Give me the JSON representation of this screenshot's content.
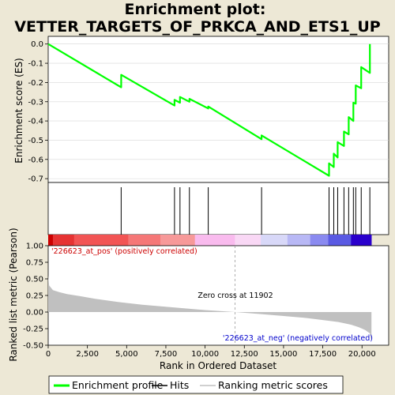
{
  "title_line1": "Enrichment plot:",
  "title_line2": "VETTER_TARGETS_OF_PRKCA_AND_ETS1_UP",
  "chart_data": [
    {
      "type": "line",
      "ylabel": "Enrichment score (ES)",
      "ylim": [
        -0.72,
        0.04
      ],
      "xlim": [
        0,
        21700
      ],
      "yticks": [
        0.0,
        -0.1,
        -0.2,
        -0.3,
        -0.4,
        -0.5,
        -0.6,
        -0.7
      ],
      "ytick_labels": [
        "0.0",
        "-0.1",
        "-0.2",
        "-0.3",
        "-0.4",
        "-0.5",
        "-0.6",
        "-0.7"
      ],
      "series": [
        {
          "name": "Enrichment profile",
          "color": "#00ff00",
          "x": [
            0,
            4650,
            4650,
            8050,
            8050,
            8400,
            8400,
            9000,
            9000,
            10200,
            10200,
            13600,
            13600,
            17900,
            17900,
            18200,
            18200,
            18450,
            18450,
            18850,
            18850,
            19150,
            19150,
            19450,
            19450,
            19600,
            19600,
            19950,
            19950,
            20500,
            20500
          ],
          "y": [
            0.0,
            -0.225,
            -0.16,
            -0.32,
            -0.29,
            -0.305,
            -0.275,
            -0.3,
            -0.285,
            -0.335,
            -0.325,
            -0.495,
            -0.475,
            -0.685,
            -0.62,
            -0.64,
            -0.57,
            -0.59,
            -0.51,
            -0.53,
            -0.455,
            -0.47,
            -0.38,
            -0.4,
            -0.305,
            -0.31,
            -0.215,
            -0.23,
            -0.12,
            -0.15,
            0.0
          ]
        }
      ]
    },
    {
      "type": "scatter",
      "name": "Hits",
      "x": [
        4650,
        8050,
        8400,
        9000,
        10200,
        13600,
        17900,
        18200,
        18450,
        18850,
        19150,
        19450,
        19600,
        19950,
        20500
      ]
    },
    {
      "type": "heatmap",
      "colors": [
        "#cc0000",
        "#e63333",
        "#f25454",
        "#f57777",
        "#f79999",
        "#f9bbee",
        "#f9d8f5",
        "#d8d8f8",
        "#b8b8f5",
        "#8a8af0",
        "#5a5ae3",
        "#2a00cc"
      ],
      "boundaries": [
        0,
        300,
        1650,
        5100,
        7150,
        9350,
        11900,
        13550,
        15250,
        16700,
        17850,
        19300,
        20600
      ]
    },
    {
      "type": "area",
      "ylabel": "Ranked list metric (Pearson)",
      "xlabel": "Rank in Ordered Dataset",
      "ylim": [
        -0.5,
        1.0
      ],
      "xlim": [
        0,
        21700
      ],
      "xticks": [
        0,
        2500,
        5000,
        7500,
        10000,
        12500,
        15000,
        17500,
        20000
      ],
      "xtick_labels": [
        "0",
        "2,500",
        "5,000",
        "7,500",
        "10,000",
        "12,500",
        "15,000",
        "17,500",
        "20,000"
      ],
      "yticks": [
        1.0,
        0.75,
        0.5,
        0.25,
        0.0,
        -0.25,
        -0.5
      ],
      "ytick_labels": [
        "1.00",
        "0.75",
        "0.50",
        "0.25",
        "0.00",
        "-0.25",
        "-0.50"
      ],
      "fill_color": "#c0c0c0",
      "x": [
        0,
        60,
        300,
        700,
        1200,
        2000,
        3000,
        4500,
        6000,
        8000,
        10000,
        11902,
        13500,
        15000,
        16500,
        17500,
        18500,
        19300,
        19800,
        20200,
        20500,
        20600
      ],
      "y": [
        0.55,
        0.4,
        0.33,
        0.3,
        0.27,
        0.24,
        0.2,
        0.15,
        0.11,
        0.07,
        0.03,
        0.0,
        -0.03,
        -0.06,
        -0.09,
        -0.12,
        -0.15,
        -0.19,
        -0.23,
        -0.27,
        -0.32,
        -0.44
      ],
      "annotations": {
        "pos_label": "'226623_at_pos' (positively correlated)",
        "pos_color": "#cc0000",
        "neg_label": "'226623_at_neg' (negatively correlated)",
        "neg_color": "#0000cc",
        "zero_cross_label": "Zero cross at 11902",
        "zero_cross_x": 11902
      }
    }
  ],
  "legend": [
    {
      "label": "Enrichment profile",
      "color": "#00ff00"
    },
    {
      "label": "Hits",
      "color": "#000000"
    },
    {
      "label": "Ranking metric scores",
      "color": "#c0c0c0"
    }
  ]
}
